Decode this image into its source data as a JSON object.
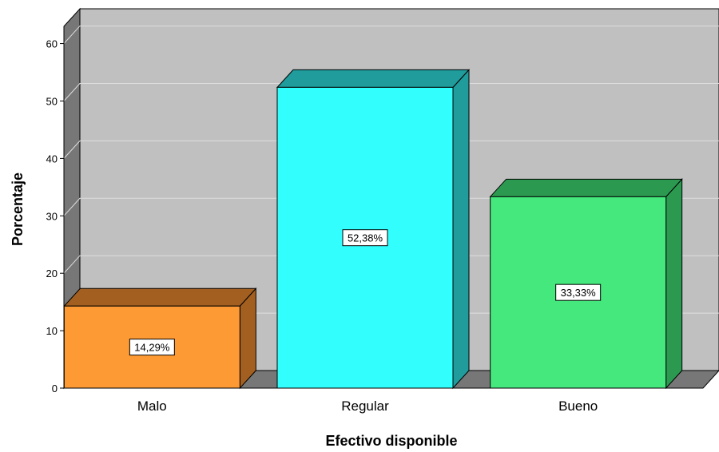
{
  "chart_data": {
    "type": "bar",
    "style": "3d",
    "categories": [
      "Malo",
      "Regular",
      "Bueno"
    ],
    "values": [
      14.29,
      52.38,
      33.33
    ],
    "data_labels": [
      "14,29%",
      "52,38%",
      "33,33%"
    ],
    "xlabel": "Efectivo disponible",
    "ylabel": "Porcentaje",
    "ylim": [
      0,
      63
    ],
    "yticks": [
      0,
      10,
      20,
      30,
      40,
      50,
      60
    ],
    "grid": true,
    "legend": "none",
    "colors": {
      "bars": [
        "#fe9a33",
        "#33fefe",
        "#44e87c"
      ],
      "bar_tops": [
        "#a35f1f",
        "#209c9c",
        "#2b9a50"
      ],
      "bar_sides": [
        "#a35f1f",
        "#209c9c",
        "#2b9a50"
      ],
      "plot_back": "#c0c0c0",
      "plot_wall": "#777777",
      "gridline": "#dedede"
    }
  }
}
